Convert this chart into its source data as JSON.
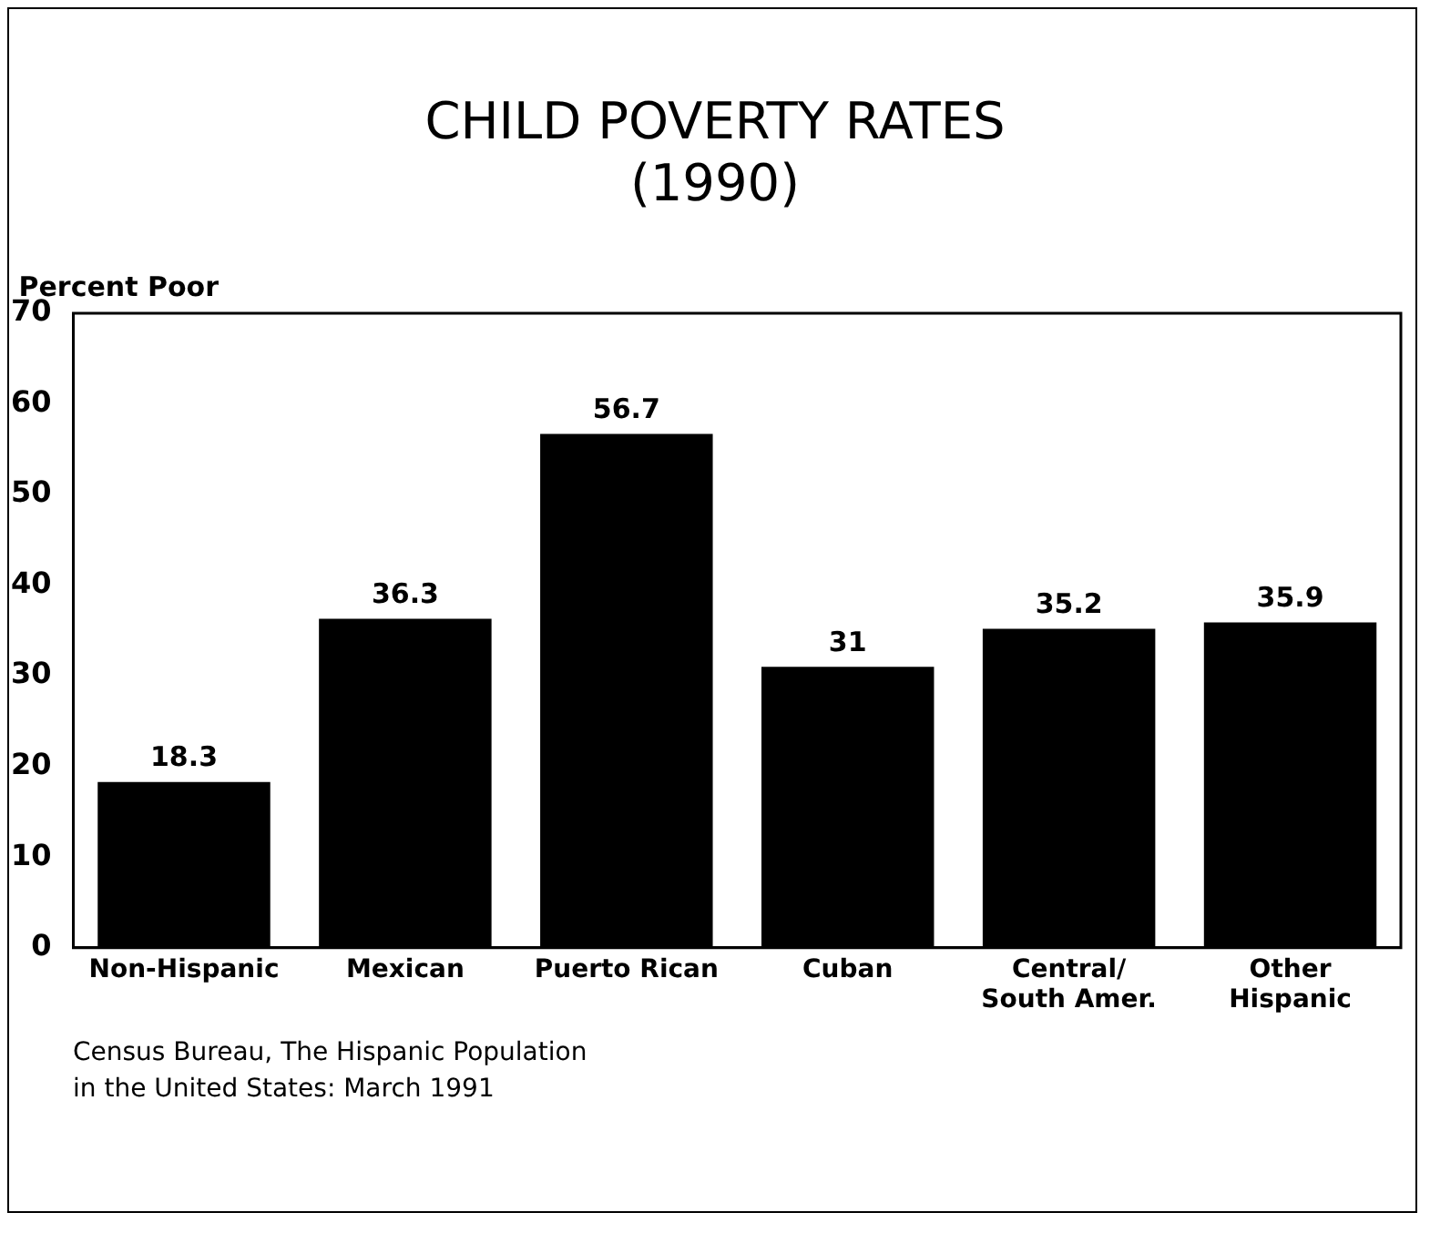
{
  "chart_data": {
    "type": "bar",
    "title": "CHILD POVERTY RATES",
    "subtitle": "(1990)",
    "ylabel": "Percent Poor",
    "categories": [
      "Non-Hispanic",
      "Mexican",
      "Puerto Rican",
      "Cuban",
      "Central/\nSouth Amer.",
      "Other\nHispanic"
    ],
    "values": [
      18.3,
      36.3,
      56.7,
      31,
      35.2,
      35.9
    ],
    "color": "#000000",
    "ylim": [
      0,
      70
    ],
    "yticks": [
      0,
      10,
      20,
      30,
      40,
      50,
      60,
      70
    ],
    "data_labels": true,
    "grid": false,
    "legend": false,
    "annotations": [
      "Census Bureau, The Hispanic Population\nin the United States: March 1991"
    ]
  }
}
